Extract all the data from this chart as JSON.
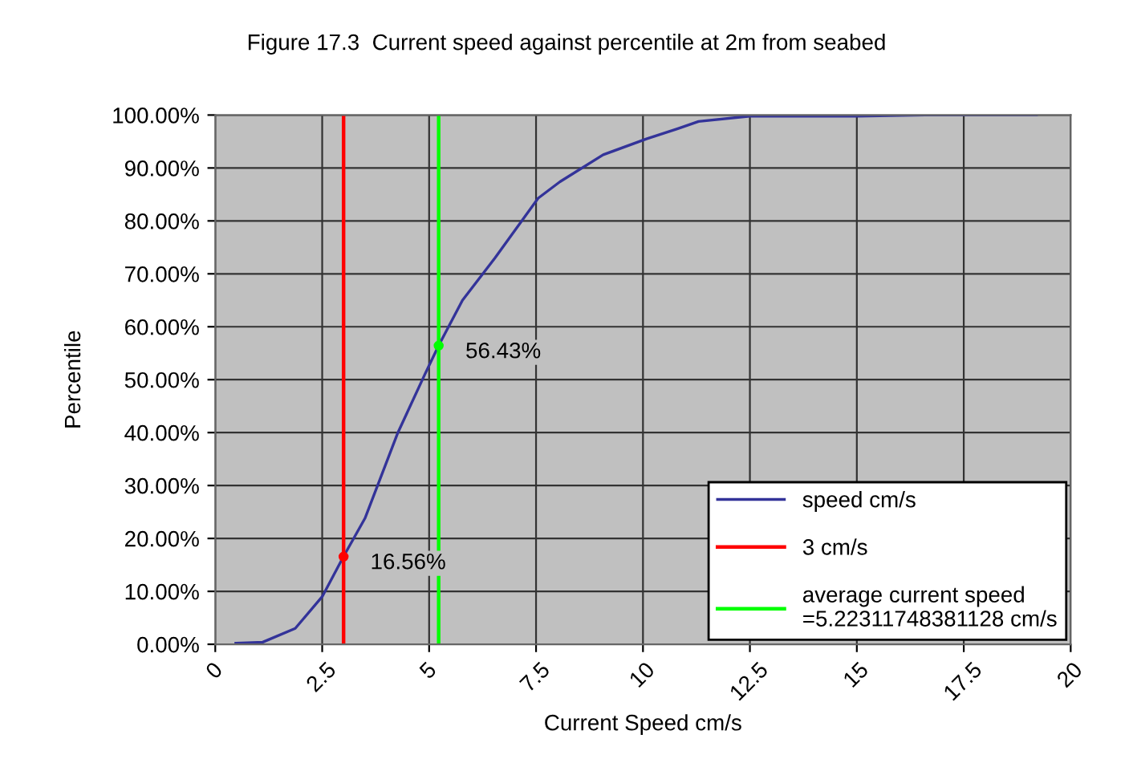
{
  "chart_data": {
    "type": "line",
    "title": "Figure 17.3  Current speed against percentile at 2m from seabed",
    "xlabel": "Current Speed cm/s",
    "ylabel": "Percentile",
    "series": [
      {
        "name": "speed cm/s",
        "color": "#333399",
        "x": [
          0.48,
          1.11,
          1.87,
          2.5,
          3.0,
          3.5,
          4.27,
          4.9,
          5.22,
          5.78,
          6.54,
          7.55,
          8.06,
          9.07,
          10.08,
          10.8,
          11.3,
          12.5,
          15,
          16.6,
          19.2
        ],
        "values": [
          0.2,
          0.4,
          3,
          9,
          16.6,
          23.8,
          40,
          51,
          56.4,
          65,
          73,
          84.3,
          87.4,
          92.5,
          95.5,
          97.4,
          98.8,
          99.8,
          99.8,
          100,
          100
        ]
      },
      {
        "name": "3 cm/s",
        "color": "#ff0000",
        "x": [
          3,
          3
        ],
        "values": [
          0,
          100
        ]
      },
      {
        "name": "average current speed\n=5.22311748381128 cm/s",
        "color": "#00ff00",
        "x": [
          5.22311748381128,
          5.22311748381128
        ],
        "values": [
          0,
          100
        ]
      }
    ],
    "annotations": [
      {
        "text": "16.56%",
        "x": 3,
        "y": 16.56
      },
      {
        "text": "56.43%",
        "x": 5.22311748381128,
        "y": 56.43
      }
    ],
    "xlim": [
      0,
      20
    ],
    "xticks": [
      0,
      2.5,
      5,
      7.5,
      10,
      12.5,
      15,
      17.5,
      20
    ],
    "ylim": [
      0,
      100
    ],
    "yticks": [
      {
        "value": 0,
        "label": "0.00%"
      },
      {
        "value": 10,
        "label": "10.00%"
      },
      {
        "value": 20,
        "label": "20.00%"
      },
      {
        "value": 30,
        "label": "30.00%"
      },
      {
        "value": 40,
        "label": "40.00%"
      },
      {
        "value": 50,
        "label": "50.00%"
      },
      {
        "value": 60,
        "label": "60.00%"
      },
      {
        "value": 70,
        "label": "70.00%"
      },
      {
        "value": 80,
        "label": "80.00%"
      },
      {
        "value": 90,
        "label": "90.00%"
      },
      {
        "value": 100,
        "label": "100.00%"
      }
    ],
    "grid": true,
    "legend": "bottom right"
  }
}
